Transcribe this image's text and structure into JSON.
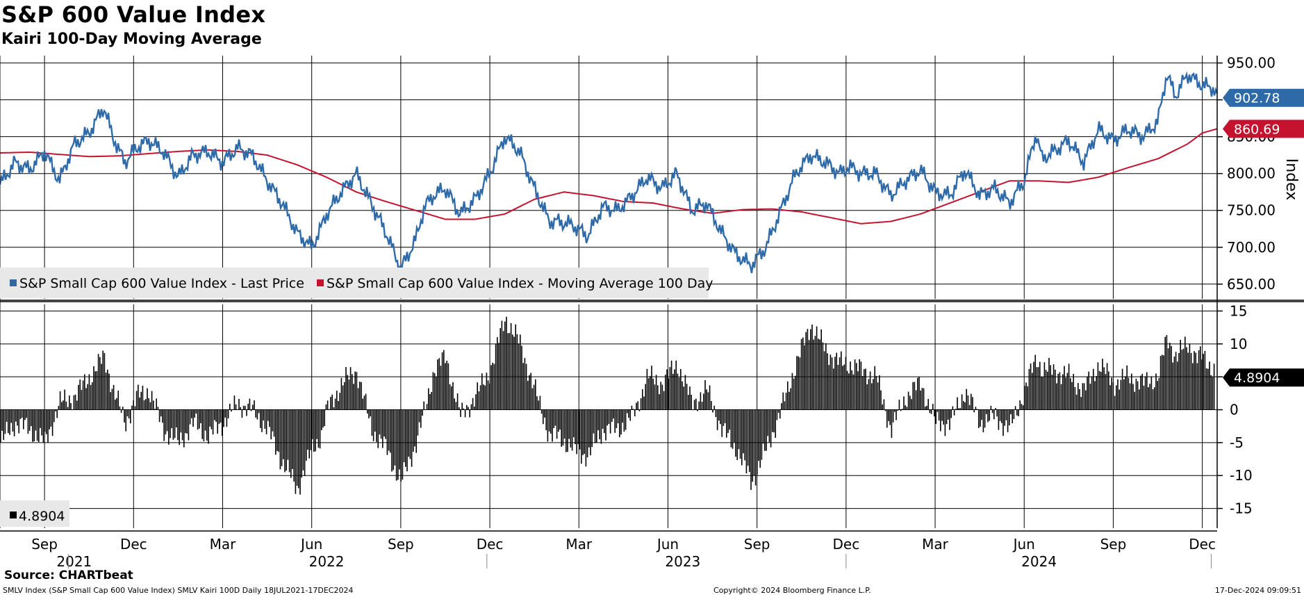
{
  "title": "S&P 600 Value Index",
  "subtitle": "Kairi 100-Day Moving Average",
  "source": "Source: CHARTbeat",
  "footer_left": "SMLV Index (S&P Small Cap 600 Value Index) SMLV Kairi 100D  Daily 18JUL2021-17DEC2024",
  "footer_mid": "Copyright© 2024 Bloomberg Finance L.P.",
  "footer_right": "17-Dec-2024 09:09:51",
  "colors": {
    "price": "#2e6aa8",
    "ma": "#c4122f",
    "kairi": "#000000"
  },
  "chart_data": [
    {
      "type": "line",
      "title": "S&P 600 Value Index",
      "ylabel": "Index",
      "ylim": [
        630,
        960
      ],
      "yticks": [
        "650.00",
        "700.00",
        "750.00",
        "800.00",
        "850.00",
        "900.00",
        "950.00"
      ],
      "ytick_values": [
        650,
        700,
        750,
        800,
        850,
        900,
        950
      ],
      "x_months": [
        "Sep",
        "Dec",
        "Mar",
        "Jun",
        "Sep",
        "Dec",
        "Mar",
        "Jun",
        "Sep",
        "Dec",
        "Mar",
        "Jun",
        "Sep",
        "Dec"
      ],
      "x_month_index": [
        1.5,
        4.5,
        7.5,
        10.5,
        13.5,
        16.5,
        19.5,
        22.5,
        25.5,
        28.5,
        31.5,
        34.5,
        37.5,
        40.5
      ],
      "x_years": [
        "2021",
        "2022",
        "2023",
        "2024"
      ],
      "x_year_index": [
        2.5,
        11,
        23,
        35
      ],
      "xlim": [
        0,
        41
      ],
      "legend": [
        "S&P Small Cap 600 Value Index - Last Price",
        "S&P Small Cap 600 Value Index - Moving Average 100 Day"
      ],
      "last_labels": {
        "price": "902.78",
        "ma": "860.69"
      },
      "series": [
        {
          "name": "S&P Small Cap 600 Value Index - Last Price",
          "x": [
            0,
            0.5,
            1,
            1.5,
            2,
            2.5,
            3,
            3.5,
            3.8,
            4.2,
            4.6,
            5,
            5.5,
            6,
            6.5,
            7,
            7.5,
            8,
            8.5,
            9,
            9.5,
            10,
            10.5,
            10.8,
            11,
            11.5,
            12,
            12.5,
            13,
            13.5,
            14,
            14.3,
            14.6,
            15,
            15.5,
            16,
            16.5,
            17,
            17.5,
            18,
            18.5,
            18.8,
            19.3,
            19.8,
            20.3,
            20.8,
            21.3,
            21.8,
            22.3,
            22.8,
            23.3,
            23.8,
            24.3,
            24.8,
            25.3,
            25.8,
            26.3,
            26.8,
            27.3,
            27.8,
            28.3,
            28.6,
            29,
            29.5,
            30,
            30.5,
            31,
            31.5,
            32,
            32.5,
            33,
            33.5,
            34,
            34.5,
            34.9,
            35.1,
            35.5,
            36,
            36.5,
            37,
            37.5,
            38,
            38.5,
            39,
            39.3,
            39.6,
            40,
            40.3,
            40.5,
            40.9,
            41
          ],
          "values": [
            785,
            815,
            805,
            830,
            790,
            840,
            855,
            890,
            850,
            815,
            835,
            845,
            830,
            795,
            825,
            830,
            815,
            835,
            825,
            790,
            760,
            720,
            700,
            725,
            745,
            775,
            800,
            760,
            720,
            670,
            710,
            755,
            770,
            780,
            745,
            765,
            800,
            850,
            830,
            780,
            735,
            735,
            730,
            715,
            755,
            750,
            770,
            795,
            780,
            800,
            750,
            760,
            720,
            690,
            675,
            700,
            750,
            800,
            825,
            815,
            800,
            810,
            800,
            800,
            770,
            790,
            805,
            775,
            770,
            805,
            770,
            780,
            760,
            790,
            855,
            820,
            830,
            845,
            815,
            860,
            845,
            860,
            850,
            870,
            935,
            905,
            935,
            925,
            920,
            915,
            902.78
          ]
        },
        {
          "name": "S&P Small Cap 600 Value Index - Moving Average 100 Day",
          "x": [
            0,
            1,
            2,
            3,
            4,
            5,
            6,
            7,
            8,
            9,
            10,
            11,
            12,
            13,
            14,
            15,
            16,
            17,
            18,
            19,
            20,
            21,
            22,
            23,
            24,
            25,
            26,
            27,
            28,
            29,
            30,
            31,
            32,
            33,
            34,
            35,
            36,
            37,
            38,
            39,
            40,
            40.5,
            41
          ],
          "values": [
            828,
            829,
            826,
            823,
            824,
            827,
            830,
            832,
            830,
            825,
            812,
            795,
            775,
            762,
            750,
            738,
            738,
            745,
            765,
            775,
            770,
            762,
            760,
            752,
            746,
            751,
            752,
            748,
            740,
            732,
            735,
            745,
            760,
            775,
            790,
            790,
            788,
            795,
            808,
            820,
            840,
            855,
            860.69
          ]
        }
      ]
    },
    {
      "type": "bar",
      "title": "SMLV Kairi 100D",
      "ylim": [
        -18,
        16
      ],
      "yticks": [
        "15",
        "10",
        "5",
        "0",
        "-5",
        "-10",
        "-15"
      ],
      "ytick_values": [
        15,
        10,
        5,
        0,
        -5,
        -10,
        -15
      ],
      "xlim": [
        0,
        41
      ],
      "legend_value": "4.8904",
      "last_label": "4.8904",
      "x": [
        0,
        0.5,
        1,
        1.5,
        2,
        2.5,
        3,
        3.5,
        3.8,
        4.2,
        4.6,
        5,
        5.5,
        6,
        6.5,
        7,
        7.5,
        8,
        8.5,
        9,
        9.5,
        10,
        10.5,
        10.8,
        11,
        11.5,
        12,
        12.5,
        13,
        13.5,
        14,
        14.3,
        14.6,
        15,
        15.5,
        16,
        16.5,
        17,
        17.5,
        18,
        18.5,
        18.8,
        19.3,
        19.8,
        20.3,
        20.8,
        21.3,
        21.8,
        22.3,
        22.8,
        23.3,
        23.8,
        24.3,
        24.8,
        25.3,
        25.8,
        26.3,
        26.8,
        27.3,
        27.8,
        28.3,
        28.6,
        29,
        29.5,
        30,
        30.5,
        31,
        31.5,
        32,
        32.5,
        33,
        33.5,
        34,
        34.5,
        34.9,
        35.1,
        35.5,
        36,
        36.5,
        37,
        37.5,
        38,
        38.5,
        39,
        39.3,
        39.6,
        40,
        40.3,
        40.5,
        40.9,
        41
      ],
      "values": [
        -5,
        -2,
        -3,
        -5,
        1,
        2,
        5,
        8,
        3,
        -2,
        2,
        3,
        -3,
        -5,
        -2,
        -4,
        -2,
        1,
        0,
        -3,
        -8,
        -12,
        -6,
        -4,
        0,
        4,
        6,
        -3,
        -6,
        -11,
        -5,
        0,
        6,
        8,
        -1,
        2,
        6,
        14,
        10,
        3,
        -4,
        -4,
        -6,
        -7,
        -3,
        -3,
        -1,
        5,
        4,
        7,
        1,
        3,
        -3,
        -6,
        -11,
        -6,
        0,
        7,
        13,
        9,
        7,
        7,
        6,
        5,
        -3,
        2,
        4,
        -2,
        -2,
        3,
        -2,
        -1,
        -3,
        3,
        8,
        6,
        6,
        5,
        3,
        7,
        4,
        5,
        4,
        5,
        11,
        8,
        10,
        8,
        8,
        6,
        4.8904
      ]
    }
  ]
}
